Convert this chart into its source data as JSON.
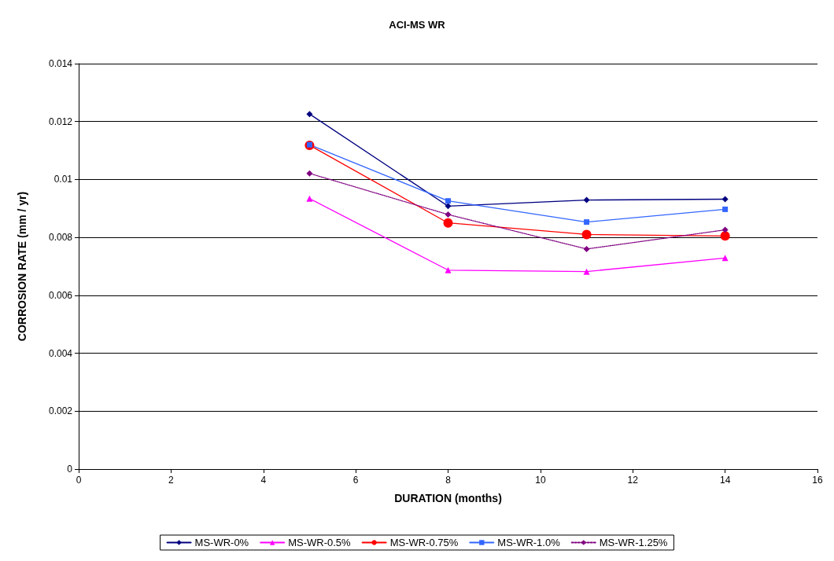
{
  "chart_data": {
    "type": "line",
    "title": "ACI-MS WR",
    "xlabel": "DURATION (months)",
    "ylabel": "CORROSION RATE (mm / yr)",
    "x": [
      5,
      8,
      11,
      14
    ],
    "series": [
      {
        "name": "MS-WR-0%",
        "color": "#000080",
        "marker": "diamond",
        "line_style": "solid",
        "values": [
          0.01226,
          0.00908,
          0.00929,
          0.00932
        ]
      },
      {
        "name": "MS-WR-0.5%",
        "color": "#ff00ff",
        "marker": "triangle",
        "line_style": "solid",
        "values": [
          0.00934,
          0.00687,
          0.00682,
          0.00729
        ]
      },
      {
        "name": "MS-WR-0.75%",
        "color": "#ff0000",
        "marker": "circle",
        "line_style": "solid",
        "values": [
          0.01118,
          0.0085,
          0.0081,
          0.00805
        ]
      },
      {
        "name": "MS-WR-1.0%",
        "color": "#3366ff",
        "marker": "square",
        "line_style": "solid",
        "values": [
          0.0112,
          0.00926,
          0.00853,
          0.00897
        ]
      },
      {
        "name": "MS-WR-1.25%",
        "color": "#800080",
        "marker": "diamond",
        "line_style": "dotted",
        "values": [
          0.01021,
          0.00879,
          0.0076,
          0.00826
        ]
      }
    ],
    "xlim": [
      0,
      16
    ],
    "xticks": [
      0,
      2,
      4,
      6,
      8,
      10,
      12,
      14,
      16
    ],
    "ylim": [
      0,
      0.014
    ],
    "yticks": [
      0,
      0.002,
      0.004,
      0.006,
      0.008,
      0.01,
      0.012,
      0.014
    ],
    "grid": "y",
    "legend": "bottom"
  }
}
